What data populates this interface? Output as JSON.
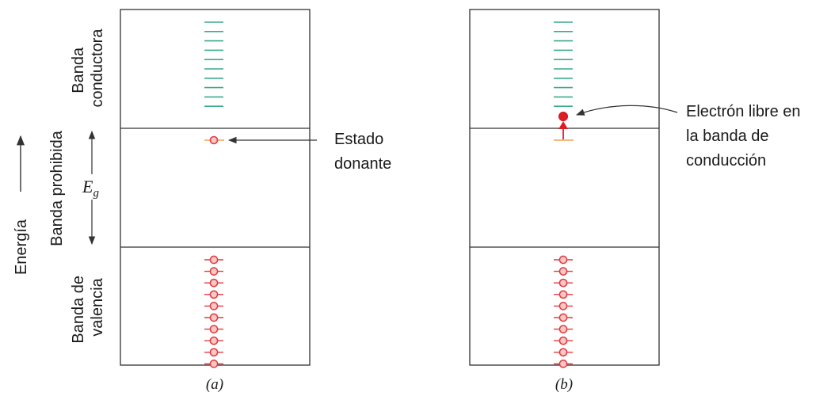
{
  "labels": {
    "banda_conductora": [
      "Banda",
      "conductora"
    ],
    "banda_prohibida": "Banda prohibida",
    "banda_valencia": [
      "Banda de",
      "valencia"
    ],
    "energia": "Energía",
    "eg_symbol": "E",
    "eg_sub": "g",
    "estado_donante": [
      "Estado",
      "donante"
    ],
    "electron_libre": [
      "Electrón libre en",
      "la banda de",
      "conducción"
    ]
  },
  "panels": [
    {
      "caption": "(a)",
      "donor_electron": "donor-level"
    },
    {
      "caption": "(b)",
      "donor_electron": "conduction-band"
    }
  ],
  "levels": {
    "conduction_lines": 10,
    "valence_electrons": 10
  },
  "colors": {
    "conduction_level": "#3aaa8c",
    "electron_stroke": "#e0393e",
    "electron_fill": "#f9c7c4",
    "free_electron": "#e01b24",
    "donor_level": "#f0a25a",
    "frame": "#333333"
  }
}
